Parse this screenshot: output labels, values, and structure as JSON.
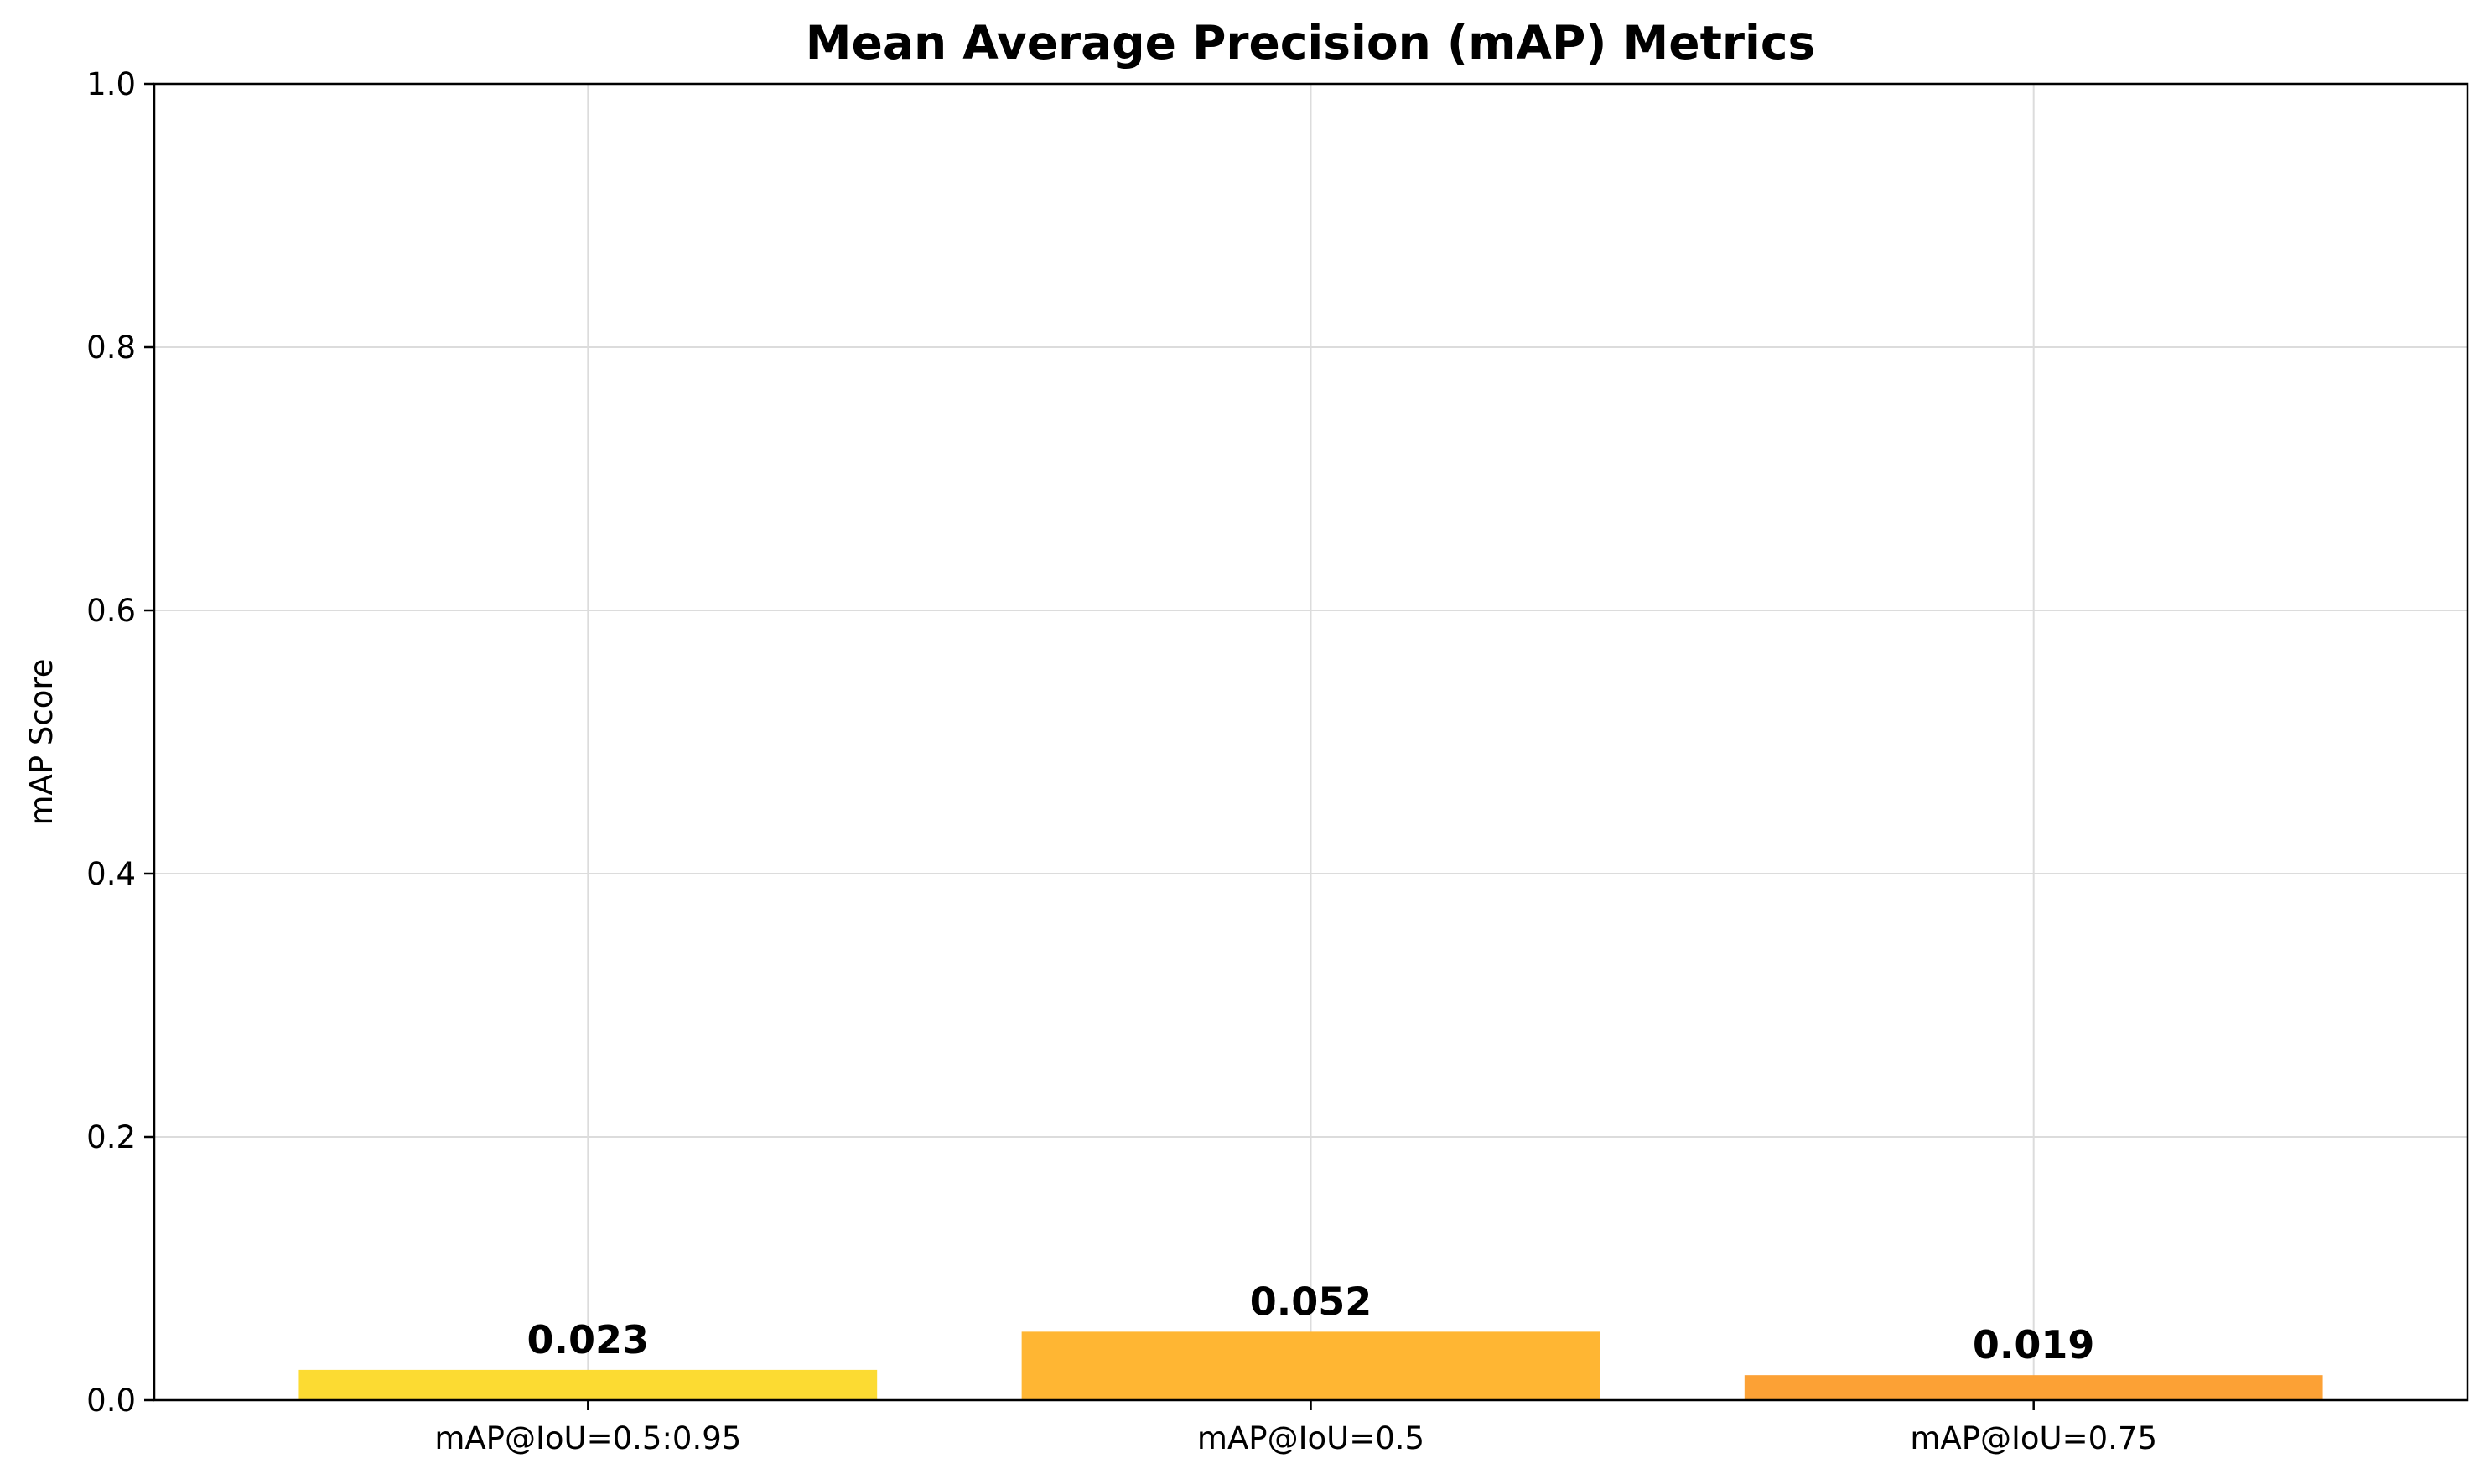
{
  "chart_data": {
    "type": "bar",
    "title": "Mean Average Precision (mAP) Metrics",
    "xlabel": "",
    "ylabel": "mAP Score",
    "categories": [
      "mAP@IoU=0.5:0.95",
      "mAP@IoU=0.5",
      "mAP@IoU=0.75"
    ],
    "values": [
      0.023,
      0.052,
      0.019
    ],
    "value_labels": [
      "0.023",
      "0.052",
      "0.019"
    ],
    "colors": [
      "#fcdb32",
      "#ffb633",
      "#fca135"
    ],
    "ylim": [
      0,
      1.0
    ],
    "yticks": [
      0.0,
      0.2,
      0.4,
      0.6,
      0.8,
      1.0
    ],
    "ytick_labels": [
      "0.0",
      "0.2",
      "0.4",
      "0.6",
      "0.8",
      "1.0"
    ],
    "grid": true,
    "legend": "none"
  }
}
